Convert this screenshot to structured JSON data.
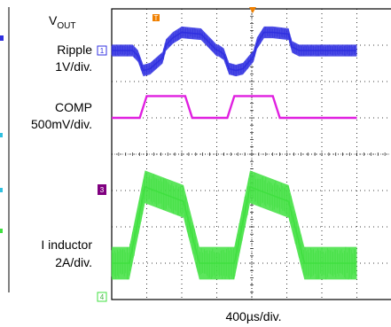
{
  "chart_data": {
    "type": "line",
    "x_scale_label": "400µs/div.",
    "trace_colors": {
      "vout": "#3030e0",
      "comp": "#e020e0",
      "inductor": "#40e040",
      "marker_orange": "#f08000",
      "marker_purple": "#800080",
      "grid": "#000000"
    },
    "divisions": {
      "x": 8,
      "y": 8
    },
    "series": [
      {
        "id": "vout",
        "label_line1": "V",
        "label_sub": "OUT",
        "label_line2": "Ripple",
        "label_line3": "1V/div.",
        "channel": "1",
        "x": [
          0,
          0.6,
          0.75,
          0.9,
          1.1,
          1.45,
          1.55,
          1.75,
          2.0,
          2.55,
          2.9,
          3.0,
          3.05,
          3.2,
          3.35,
          3.55,
          3.75,
          4.05,
          4.15,
          4.35,
          4.6,
          5.05,
          5.15,
          5.35,
          5.6,
          7.0
        ],
        "y": [
          0,
          0,
          -0.15,
          -0.55,
          -0.5,
          -0.2,
          0.15,
          0.35,
          0.5,
          0.45,
          0.1,
          0,
          0,
          -0.1,
          -0.5,
          -0.55,
          -0.5,
          -0.15,
          0.2,
          0.5,
          0.5,
          0.45,
          0.1,
          0,
          0,
          0
        ],
        "band_divs": 0.16
      },
      {
        "id": "comp",
        "label_line1": "COMP",
        "label_line2": "500mV/div.",
        "x": [
          0,
          0.8,
          1.0,
          1.1,
          2.1,
          2.3,
          3.3,
          3.5,
          3.6,
          4.6,
          4.8,
          7.0
        ],
        "y": [
          0,
          0,
          0.6,
          0.6,
          0.6,
          0,
          0,
          0.6,
          0.6,
          0.6,
          0,
          0
        ],
        "band_divs": 0.03
      },
      {
        "id": "inductor",
        "label_line1": "I inductor",
        "label_line2": "2A/div.",
        "channel": "4",
        "x": [
          0,
          0.5,
          0.95,
          2.05,
          2.5,
          3.5,
          3.95,
          5.05,
          5.5,
          7.0
        ],
        "y": [
          0,
          0,
          2.1,
          1.7,
          0,
          0,
          2.1,
          1.7,
          0,
          0
        ],
        "band_divs": 0.45
      }
    ]
  }
}
